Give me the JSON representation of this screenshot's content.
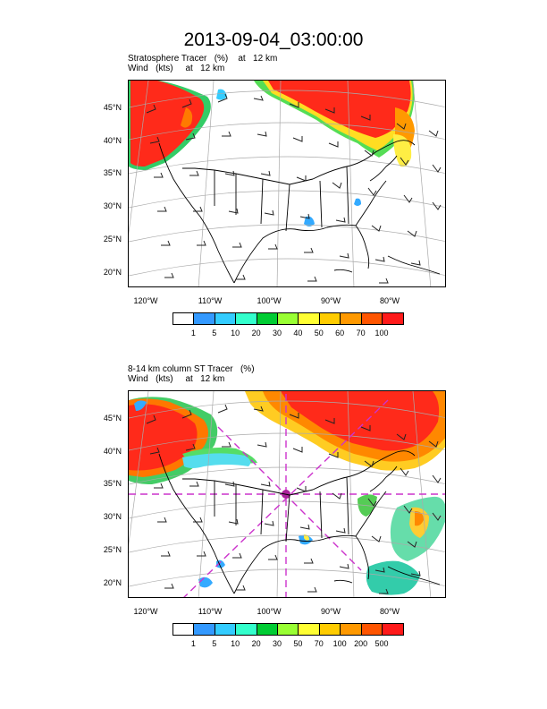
{
  "title": "2013-09-04_03:00:00",
  "panel1": {
    "line1": "Stratosphere Tracer   (%)    at   12 km",
    "line2": "Wind   (kts)     at   12 km",
    "lat_labels": [
      "45°N",
      "40°N",
      "35°N",
      "30°N",
      "25°N",
      "20°N"
    ],
    "lon_labels": [
      "120°W",
      "110°W",
      "100°W",
      "90°W",
      "80°W"
    ],
    "colorbar_labels": [
      "1",
      "5",
      "10",
      "20",
      "30",
      "40",
      "50",
      "60",
      "70",
      "100"
    ],
    "colorbar_colors": [
      "#ffffff",
      "#3399ff",
      "#33ccff",
      "#33ffcc",
      "#00cc33",
      "#99ff33",
      "#ffff33",
      "#ffcc00",
      "#ff9900",
      "#ff5500",
      "#ff1a1a"
    ]
  },
  "panel2": {
    "line1": "8-14 km column ST Tracer   (%)",
    "line2": "Wind   (kts)     at   12 km",
    "lat_labels": [
      "45°N",
      "40°N",
      "35°N",
      "30°N",
      "25°N",
      "20°N"
    ],
    "lon_labels": [
      "120°W",
      "110°W",
      "100°W",
      "90°W",
      "80°W"
    ],
    "colorbar_labels": [
      "1",
      "5",
      "10",
      "20",
      "30",
      "50",
      "70",
      "100",
      "200",
      "500"
    ],
    "colorbar_colors": [
      "#ffffff",
      "#3399ff",
      "#33ccff",
      "#33ffcc",
      "#00cc33",
      "#99ff33",
      "#ffff33",
      "#ffcc00",
      "#ff9900",
      "#ff5500",
      "#ff1a1a"
    ]
  }
}
